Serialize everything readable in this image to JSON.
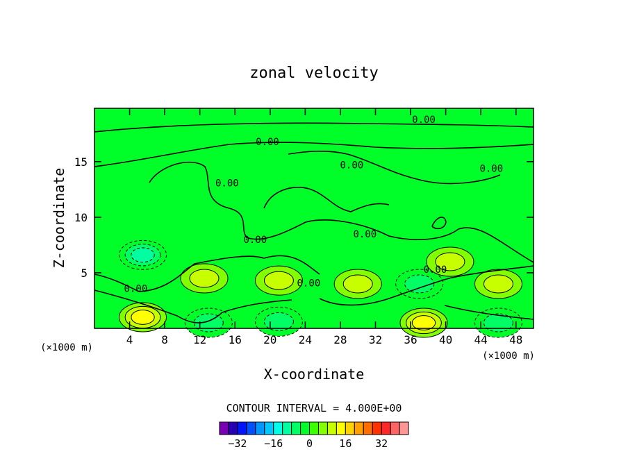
{
  "chart_data": {
    "type": "heatmap",
    "subtype": "filled-contour",
    "title": "zonal velocity",
    "xlabel": "X-coordinate",
    "ylabel": "Z-coordinate",
    "x_unit": "(×1000 m)",
    "y_unit": "(×1000 m)",
    "xlim": [
      0,
      50
    ],
    "ylim": [
      0,
      19.8
    ],
    "x_ticks": [
      4,
      8,
      12,
      16,
      20,
      24,
      28,
      32,
      36,
      40,
      44,
      48
    ],
    "y_ticks": [
      5,
      10,
      15
    ],
    "contour_interval_text": "CONTOUR INTERVAL = 4.000E+00",
    "contour_label": "0.00",
    "colorbar": {
      "colors": [
        "#7a00b4",
        "#2800b4",
        "#0014ff",
        "#0050ff",
        "#0096ff",
        "#00c8ff",
        "#00ffe6",
        "#00ffa0",
        "#00ff64",
        "#00ff28",
        "#3cff00",
        "#82ff00",
        "#c8ff00",
        "#ffff00",
        "#ffd200",
        "#ffa000",
        "#ff6e00",
        "#ff3200",
        "#ff2828",
        "#ff6464",
        "#ff9696"
      ],
      "ticks": [
        -32,
        -16,
        0,
        16,
        32
      ],
      "tick_labels": [
        "−32",
        "−16",
        "0",
        "16",
        "32"
      ],
      "min": -40,
      "max": 44
    },
    "features": [
      {
        "x": 5.5,
        "y": 1.0,
        "value": 12,
        "kind": "positive maximum"
      },
      {
        "x": 5.5,
        "y": 6.6,
        "value": -12,
        "kind": "negative minimum"
      },
      {
        "x": 12.5,
        "y": 4.5,
        "value": 8,
        "kind": "positive maximum"
      },
      {
        "x": 21.0,
        "y": 4.3,
        "value": 6,
        "kind": "positive maximum"
      },
      {
        "x": 30.0,
        "y": 4.0,
        "value": 8,
        "kind": "positive maximum"
      },
      {
        "x": 37.0,
        "y": 4.0,
        "value": -8,
        "kind": "negative minimum"
      },
      {
        "x": 40.5,
        "y": 6.0,
        "value": 6,
        "kind": "positive maximum"
      },
      {
        "x": 46.0,
        "y": 4.0,
        "value": 6,
        "kind": "positive maximum"
      },
      {
        "x": 13.0,
        "y": 0.5,
        "value": -6,
        "kind": "negative minimum"
      },
      {
        "x": 21.0,
        "y": 0.6,
        "value": -6,
        "kind": "negative minimum"
      },
      {
        "x": 37.5,
        "y": 0.5,
        "value": 10,
        "kind": "positive maximum"
      },
      {
        "x": 46.0,
        "y": 0.5,
        "value": -6,
        "kind": "negative minimum"
      }
    ]
  }
}
